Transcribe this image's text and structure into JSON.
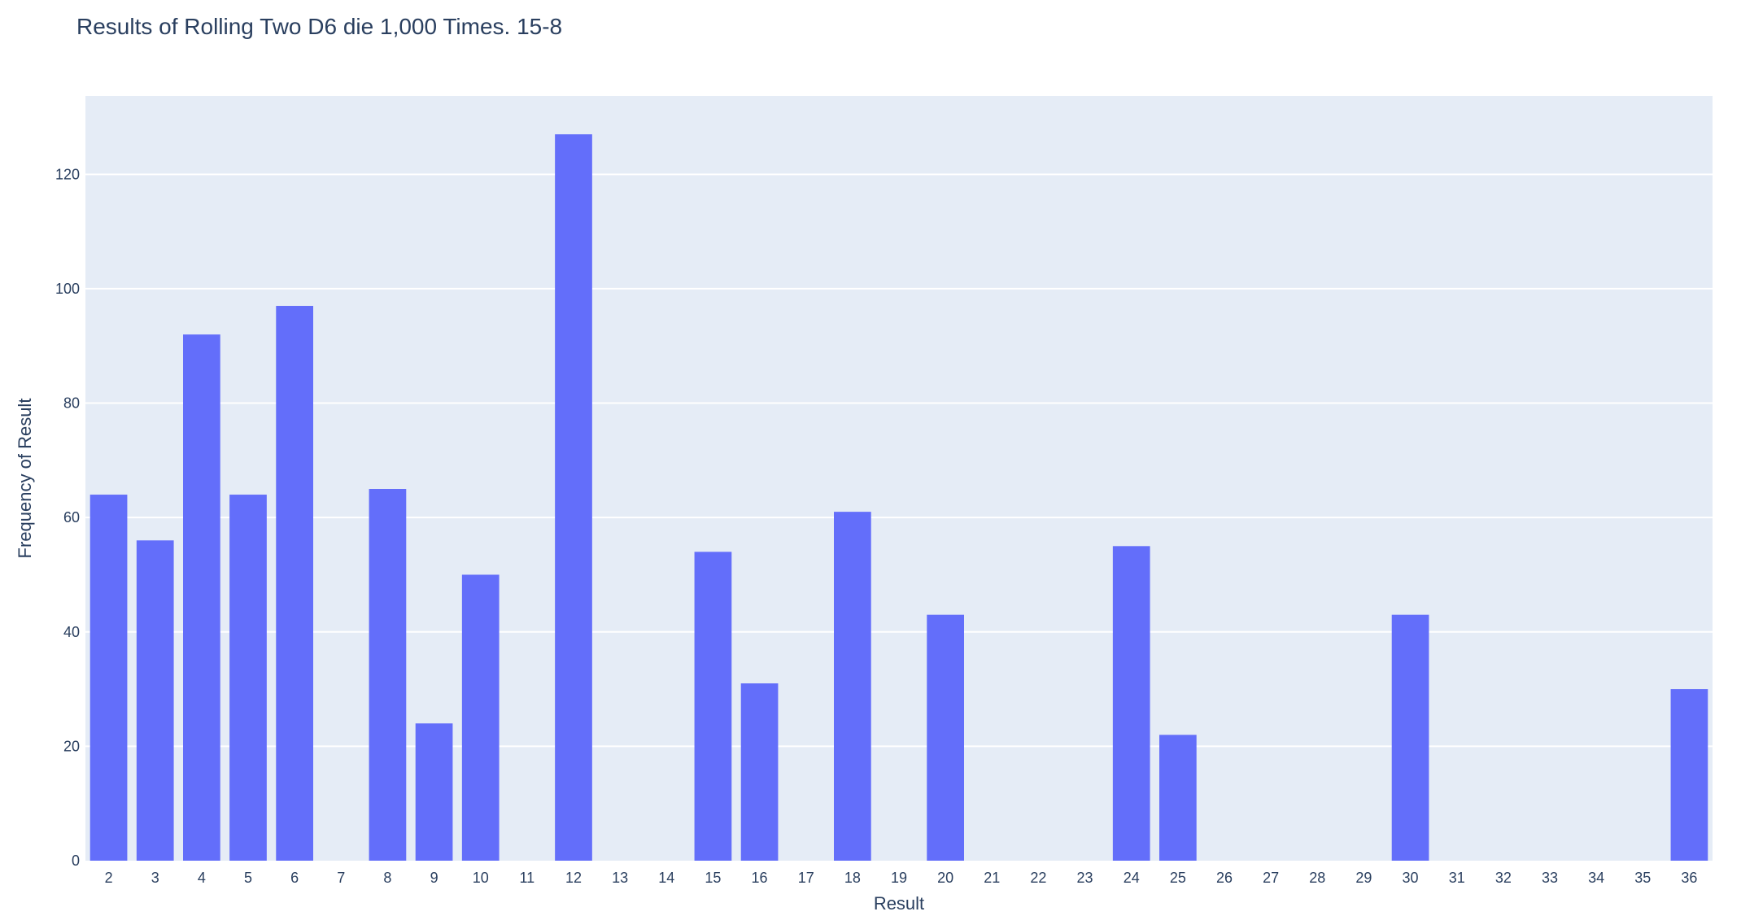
{
  "chart_data": {
    "type": "bar",
    "title": "Results of Rolling Two D6 die 1,000 Times. 15-8",
    "xlabel": "Result",
    "ylabel": "Frequency of Result",
    "categories": [
      "2",
      "3",
      "4",
      "5",
      "6",
      "7",
      "8",
      "9",
      "10",
      "11",
      "12",
      "13",
      "14",
      "15",
      "16",
      "17",
      "18",
      "19",
      "20",
      "21",
      "22",
      "23",
      "24",
      "25",
      "26",
      "27",
      "28",
      "29",
      "30",
      "31",
      "32",
      "33",
      "34",
      "35",
      "36"
    ],
    "values": [
      64,
      56,
      92,
      64,
      97,
      0,
      65,
      24,
      50,
      0,
      127,
      0,
      0,
      54,
      31,
      0,
      61,
      0,
      43,
      0,
      0,
      0,
      55,
      22,
      0,
      0,
      0,
      0,
      43,
      0,
      0,
      0,
      0,
      0,
      30
    ],
    "ylim": [
      0,
      133.7
    ],
    "yticks": [
      "0",
      "20",
      "40",
      "60",
      "80",
      "100",
      "120"
    ],
    "grid": true,
    "colors": {
      "bar": "#636efa",
      "plot_bg": "#e5ecf6",
      "grid": "#ffffff",
      "text": "#2a3f5f"
    }
  }
}
